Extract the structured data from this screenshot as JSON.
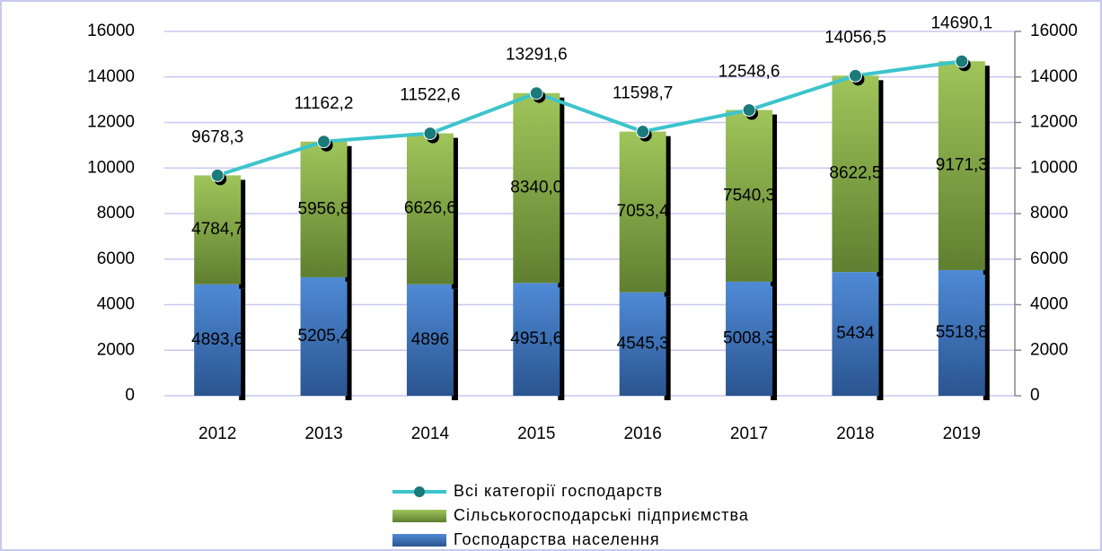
{
  "chart_data": {
    "type": "bar",
    "categories": [
      "2012",
      "2013",
      "2014",
      "2015",
      "2016",
      "2017",
      "2018",
      "2019"
    ],
    "series": [
      {
        "name": "Господарства населення",
        "color": "#4a7fc4",
        "stack": true,
        "values": [
          4893.6,
          5205.4,
          4896,
          4951.6,
          4545.3,
          5008.3,
          5434,
          5518.8
        ],
        "value_labels": [
          "4893,6",
          "5205,4",
          "4896",
          "4951,6",
          "4545,3",
          "5008,3",
          "5434",
          "5518,8"
        ]
      },
      {
        "name": "Сільськогосподарські підприємства",
        "color": "#8db04a",
        "stack": true,
        "values": [
          4784.7,
          5956.8,
          6626.6,
          8340.0,
          7053.4,
          7540.3,
          8622.5,
          9171.3
        ],
        "value_labels": [
          "4784,7",
          "5956,8",
          "6626,6",
          "8340,0",
          "7053,4",
          "7540,3",
          "8622,5",
          "9171,3"
        ]
      },
      {
        "name": "Всі категорії господарств",
        "color": "#3cc4cc",
        "type": "line",
        "axis": "y2",
        "values": [
          9678.3,
          11162.2,
          11522.6,
          13291.6,
          11598.7,
          12548.6,
          14056.5,
          14690.1
        ],
        "value_labels": [
          "9678,3",
          "11162,2",
          "11522,6",
          "13291,6",
          "11598,7",
          "12548,6",
          "14056,5",
          "14690,1"
        ]
      }
    ],
    "ylim": [
      0,
      16000
    ],
    "yticks": [
      0,
      2000,
      4000,
      6000,
      8000,
      10000,
      12000,
      14000,
      16000
    ],
    "y2lim": [
      0,
      16000
    ],
    "y2ticks": [
      0,
      2000,
      4000,
      6000,
      8000,
      10000,
      12000,
      14000,
      16000
    ],
    "grid": true,
    "legend": "bottom"
  }
}
